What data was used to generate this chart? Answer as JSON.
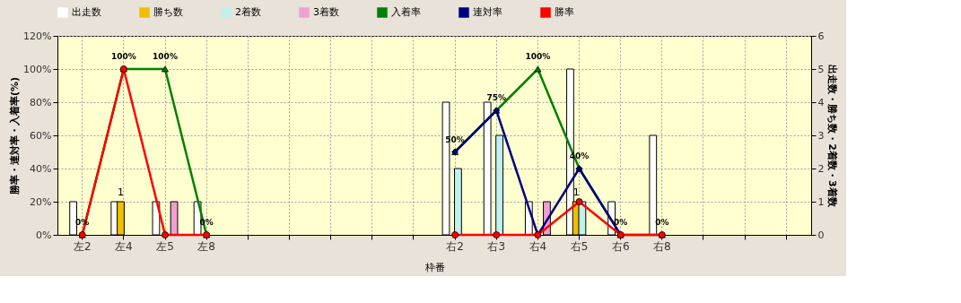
{
  "chart_data": {
    "type": "bar",
    "xlabel": "枠番",
    "ylabel": "勝率・連対率・入着率(%)",
    "y2label": "出走数・勝ち数・2着数・3着数",
    "categories": [
      "左2",
      "左4",
      "左5",
      "左8",
      null,
      null,
      null,
      null,
      null,
      "右2",
      "右3",
      "右4",
      "右5",
      "右6",
      "右8",
      null,
      null,
      null
    ],
    "series": [
      {
        "name": "出走数",
        "axis": "y2",
        "color": "#ffffff",
        "values": [
          1,
          1,
          1,
          1,
          null,
          null,
          null,
          null,
          null,
          4,
          4,
          1,
          5,
          1,
          3,
          null,
          null,
          null
        ]
      },
      {
        "name": "勝ち数",
        "axis": "y2",
        "color": "#f0c000",
        "values": [
          0,
          1,
          0,
          0,
          null,
          null,
          null,
          null,
          null,
          0,
          0,
          0,
          1,
          0,
          0,
          null,
          null,
          null
        ],
        "value_labels": [
          null,
          "1",
          null,
          null,
          null,
          null,
          null,
          null,
          null,
          null,
          null,
          null,
          "1",
          null,
          null,
          null,
          null,
          null
        ]
      },
      {
        "name": "2着数",
        "axis": "y2",
        "color": "#c0f0f0",
        "values": [
          0,
          0,
          0,
          0,
          null,
          null,
          null,
          null,
          null,
          2,
          3,
          0,
          1,
          0,
          0,
          null,
          null,
          null
        ]
      },
      {
        "name": "3着数",
        "axis": "y2",
        "color": "#f0a0d0",
        "values": [
          0,
          0,
          1,
          0,
          null,
          null,
          null,
          null,
          null,
          0,
          0,
          1,
          0,
          0,
          0,
          null,
          null,
          null
        ]
      },
      {
        "name": "入着率",
        "type": "line",
        "marker": "triangle",
        "color": "#008000",
        "values": [
          0,
          100,
          100,
          0,
          null,
          null,
          null,
          null,
          null,
          50,
          75,
          100,
          40,
          0,
          0,
          null,
          null,
          null
        ],
        "value_labels": [
          "0%",
          "100%",
          "100%",
          "0%",
          null,
          null,
          null,
          null,
          null,
          "50%",
          "75%",
          "100%",
          "40%",
          "0%",
          "0%",
          null,
          null,
          null
        ]
      },
      {
        "name": "連対率",
        "type": "line",
        "marker": "diamond",
        "color": "#000080",
        "values": [
          null,
          null,
          null,
          null,
          null,
          null,
          null,
          null,
          null,
          50,
          75,
          0,
          40,
          0,
          null,
          null,
          null,
          null
        ]
      },
      {
        "name": "勝率",
        "type": "line",
        "marker": "circle",
        "color": "#ff0000",
        "values": [
          0,
          100,
          0,
          0,
          null,
          null,
          null,
          null,
          null,
          0,
          0,
          0,
          20,
          0,
          0,
          null,
          null,
          null
        ]
      }
    ],
    "ylim": [
      0,
      120
    ],
    "yticks": [
      {
        "value": 0,
        "label": "0%"
      },
      {
        "value": 20,
        "label": "20%"
      },
      {
        "value": 40,
        "label": "40%"
      },
      {
        "value": 60,
        "label": "60%"
      },
      {
        "value": 80,
        "label": "80%"
      },
      {
        "value": 100,
        "label": "100%"
      },
      {
        "value": 120,
        "label": "120%"
      }
    ],
    "y2lim": [
      0,
      6
    ],
    "y2ticks": [
      0,
      1,
      2,
      3,
      4,
      5,
      6
    ],
    "grid": true,
    "legend": "top",
    "line_style": "solid"
  }
}
